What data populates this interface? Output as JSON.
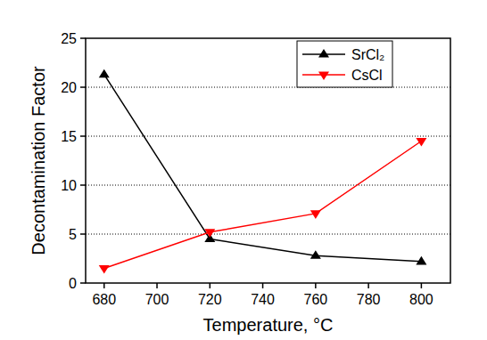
{
  "chart_data": {
    "type": "line",
    "x_label": "Temperature, °C",
    "y_label": "Decontamination Factor",
    "x": [
      680,
      720,
      760,
      800
    ],
    "series": [
      {
        "name": "SrCl₂",
        "color": "#000000",
        "marker": "triangle-up",
        "line_style": "solid",
        "values": [
          21.3,
          4.5,
          2.8,
          2.2
        ]
      },
      {
        "name": "CsCl",
        "color": "#ff0000",
        "marker": "triangle-down",
        "line_style": "solid",
        "values": [
          1.5,
          5.2,
          7.1,
          14.5
        ]
      }
    ],
    "xlim": [
      673,
      811
    ],
    "xticks": [
      680,
      700,
      720,
      740,
      760,
      780,
      800
    ],
    "ylim": [
      0,
      25
    ],
    "yticks": [
      0,
      5,
      10,
      15,
      20,
      25
    ],
    "grid": true,
    "legend": "upper right"
  }
}
